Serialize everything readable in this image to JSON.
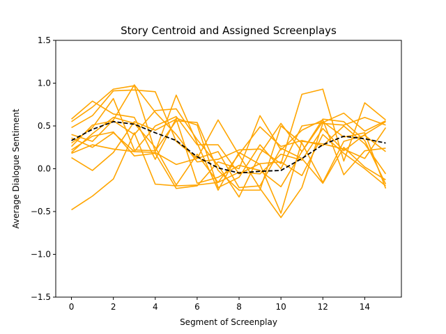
{
  "chart_data": {
    "type": "line",
    "title": "Story Centroid and Assigned Screenplays",
    "xlabel": "Segment of Screenplay",
    "ylabel": "Average Dialogue Sentiment",
    "xlim": [
      -0.75,
      15.75
    ],
    "ylim": [
      -1.5,
      1.5
    ],
    "xticks": [
      0,
      2,
      4,
      6,
      8,
      10,
      12,
      14
    ],
    "yticks": [
      -1.5,
      -1.0,
      -0.5,
      0.0,
      0.5,
      1.0,
      1.5
    ],
    "xtick_labels": [
      "0",
      "2",
      "4",
      "6",
      "8",
      "10",
      "12",
      "14"
    ],
    "ytick_labels": [
      "−1.5",
      "−1.0",
      "−0.5",
      "0.0",
      "0.5",
      "1.0",
      "1.5"
    ],
    "grid": false,
    "legend": "none",
    "colors": {
      "screenplays": "#ffa500",
      "centroid": "#000000"
    },
    "x": [
      0,
      1,
      2,
      3,
      4,
      5,
      6,
      7,
      8,
      9,
      10,
      11,
      12,
      13,
      14,
      15
    ],
    "series": [
      {
        "values": [
          0.58,
          0.79,
          0.64,
          0.6,
          0.11,
          0.59,
          0.51,
          -0.22,
          -0.1,
          0.28,
          0.0,
          0.5,
          0.54,
          0.65,
          0.44,
          0.56
        ]
      },
      {
        "values": [
          0.55,
          0.72,
          0.93,
          0.97,
          0.2,
          0.86,
          0.3,
          -0.25,
          0.19,
          0.05,
          -0.52,
          0.32,
          0.29,
          0.23,
          0.12,
          0.48
        ]
      },
      {
        "values": [
          0.48,
          0.62,
          0.91,
          0.92,
          0.9,
          0.32,
          0.12,
          0.57,
          0.16,
          -0.23,
          -0.57,
          -0.22,
          0.53,
          0.51,
          0.6,
          0.51
        ]
      },
      {
        "values": [
          0.4,
          0.32,
          0.57,
          0.98,
          0.66,
          0.4,
          0.08,
          0.11,
          0.22,
          0.23,
          0.06,
          0.87,
          0.93,
          0.09,
          0.77,
          0.57
        ]
      },
      {
        "values": [
          0.36,
          0.25,
          0.42,
          0.2,
          0.19,
          0.05,
          0.12,
          0.2,
          -0.22,
          -0.2,
          0.24,
          0.12,
          -0.17,
          0.25,
          0.02,
          -0.13
        ]
      },
      {
        "values": [
          0.3,
          0.48,
          0.82,
          0.22,
          0.21,
          0.56,
          0.54,
          -0.02,
          -0.25,
          -0.25,
          0.5,
          0.3,
          -0.16,
          0.32,
          0.39,
          0.2
        ]
      },
      {
        "values": [
          0.26,
          0.51,
          0.56,
          0.4,
          0.68,
          0.7,
          0.34,
          0.04,
          -0.33,
          0.17,
          0.53,
          0.2,
          0.58,
          0.55,
          0.33,
          -0.18
        ]
      },
      {
        "values": [
          0.22,
          0.38,
          0.43,
          0.15,
          0.18,
          -0.23,
          -0.2,
          0.08,
          0.0,
          0.62,
          0.22,
          0.45,
          0.57,
          -0.07,
          0.21,
          0.24
        ]
      },
      {
        "values": [
          0.19,
          0.41,
          0.6,
          0.53,
          0.25,
          -0.19,
          0.17,
          -0.16,
          0.17,
          0.49,
          0.26,
          0.33,
          0.27,
          0.5,
          0.29,
          -0.06
        ]
      },
      {
        "values": [
          0.18,
          0.28,
          0.23,
          0.2,
          0.5,
          0.61,
          0.28,
          0.28,
          -0.06,
          0.06,
          0.08,
          -0.08,
          0.4,
          0.18,
          0.0,
          -0.2
        ]
      },
      {
        "values": [
          0.13,
          -0.02,
          0.19,
          0.55,
          0.45,
          0.58,
          -0.17,
          -0.1,
          0.04,
          -0.02,
          -0.21,
          0.2,
          0.55,
          0.37,
          0.42,
          -0.23
        ]
      },
      {
        "values": [
          -0.48,
          -0.32,
          -0.12,
          0.42,
          -0.18,
          -0.2,
          -0.19,
          -0.16,
          -0.04,
          -0.06,
          0.17,
          0.1,
          0.47,
          0.21,
          0.4,
          0.55
        ]
      }
    ],
    "centroid": {
      "values": [
        0.33,
        0.46,
        0.55,
        0.52,
        0.42,
        0.33,
        0.14,
        0.01,
        -0.05,
        -0.03,
        -0.02,
        0.12,
        0.28,
        0.38,
        0.35,
        0.3
      ]
    }
  }
}
